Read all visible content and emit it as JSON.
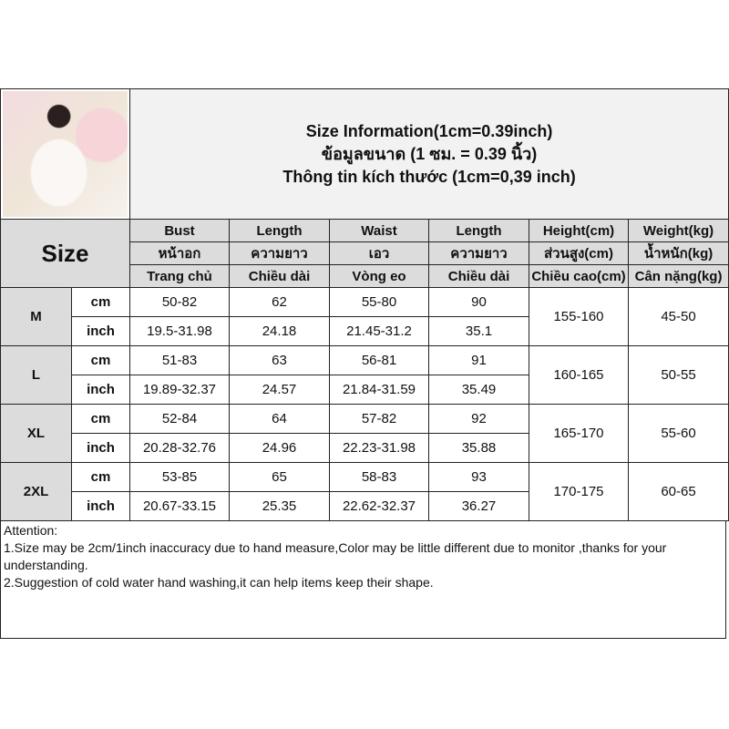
{
  "title": {
    "en": "Size Information(1cm=0.39inch)",
    "th": "ข้อมูลขนาด (1 ซม. = 0.39 นิ้ว)",
    "vi": "Thông tin kích thước (1cm=0,39 inch)"
  },
  "size_label": "Size",
  "headers": [
    [
      "Bust",
      "หน้าอก",
      "Trang chủ"
    ],
    [
      "Length",
      "ความยาว",
      "Chiều dài"
    ],
    [
      "Waist",
      "เอว",
      "Vòng eo"
    ],
    [
      "Length",
      "ความยาว",
      "Chiều dài"
    ],
    [
      "Height(cm)",
      "ส่วนสูง(cm)",
      "Chiều cao(cm)"
    ],
    [
      "Weight(kg)",
      "น้ำหนัก(kg)",
      "Cân nặng(kg)"
    ]
  ],
  "rows": [
    {
      "size": "M",
      "height": "155-160",
      "weight": "45-50",
      "cm": [
        "50-82",
        "62",
        "55-80",
        "90"
      ],
      "inch": [
        "19.5-31.98",
        "24.18",
        "21.45-31.2",
        "35.1"
      ]
    },
    {
      "size": "L",
      "height": "160-165",
      "weight": "50-55",
      "cm": [
        "51-83",
        "63",
        "56-81",
        "91"
      ],
      "inch": [
        "19.89-32.37",
        "24.57",
        "21.84-31.59",
        "35.49"
      ]
    },
    {
      "size": "XL",
      "height": "165-170",
      "weight": "55-60",
      "cm": [
        "52-84",
        "64",
        "57-82",
        "92"
      ],
      "inch": [
        "20.28-32.76",
        "24.96",
        "22.23-31.98",
        "35.88"
      ]
    },
    {
      "size": "2XL",
      "height": "170-175",
      "weight": "60-65",
      "cm": [
        "53-85",
        "65",
        "58-83",
        "93"
      ],
      "inch": [
        "20.67-33.15",
        "25.35",
        "22.62-32.37",
        "36.27"
      ]
    }
  ],
  "units": {
    "cm": "cm",
    "inch": "inch"
  },
  "attention": {
    "heading": "Attention:",
    "lines": [
      "1.Size may be 2cm/1inch inaccuracy due to hand measure,Color may be little different due to monitor ,thanks for your understanding.",
      "2.Suggestion of cold water hand washing,it can help items keep their shape."
    ]
  }
}
